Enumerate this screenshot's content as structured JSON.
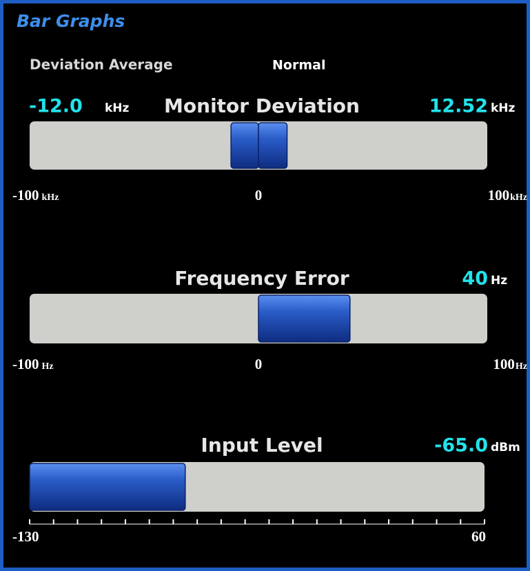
{
  "panel": {
    "title": "Bar Graphs",
    "deviation_average": {
      "label": "Deviation Average",
      "value": "Normal"
    }
  },
  "gauges": [
    {
      "title": "Monitor Deviation",
      "unit": "kHz",
      "min": {
        "value": -100,
        "label": "-100"
      },
      "center": 0,
      "max": 100,
      "readouts": [
        {
          "value": -12.0,
          "label": "-12.0",
          "unit": "kHz"
        },
        {
          "value": 12.52,
          "unit": "kHz"
        }
      ]
    },
    {
      "title": "Frequency Error",
      "unit": "Hz",
      "min": {
        "value": -100,
        "label": "-100"
      },
      "center": 0,
      "max": 100,
      "readouts": [
        {
          "value": 40,
          "unit": "Hz"
        }
      ]
    },
    {
      "title": "Input Level",
      "min": -130,
      "max": 60,
      "ticks": [
        -130,
        -120,
        -110,
        -100,
        -90,
        -80,
        -70,
        -60,
        -50,
        -40,
        -30,
        -20,
        -10,
        0,
        10,
        20,
        30,
        40,
        50,
        60
      ],
      "readouts": [
        {
          "value": -65.0,
          "label": "-65.0",
          "unit": "dBm"
        }
      ]
    }
  ]
}
